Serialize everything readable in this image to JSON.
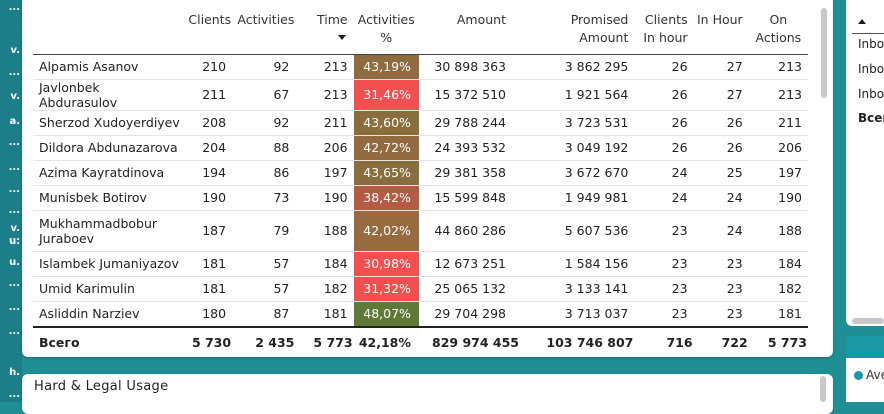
{
  "left_strip": [
    "...",
    "v.",
    "...",
    "v.",
    "a.",
    "...",
    "...",
    "...",
    "...",
    "v.",
    "...",
    "u.",
    "u.",
    "...",
    "...",
    "...",
    "h.",
    "..."
  ],
  "table": {
    "headers": {
      "name": "",
      "clients": "Clients",
      "activities": "Activities",
      "time": "Time",
      "activities_pct_1": "Activities",
      "activities_pct_2": "%",
      "amount": "Amount",
      "promised_1": "Promised",
      "promised_2": "Amount",
      "clients_in_hour_1": "Clients",
      "clients_in_hour_2": "In hour",
      "in_hour": "In Hour",
      "on_actions_1": "On",
      "on_actions_2": "Actions"
    },
    "rows": [
      {
        "name": "Alpamis Asanov",
        "clients": "210",
        "activities": "92",
        "time": "213",
        "pct": "43,19%",
        "pct_color": "#8f6b3f",
        "amount": "30 898 363",
        "promised": "3 862 295",
        "cih": "26",
        "ih": "27",
        "oa": "213"
      },
      {
        "name": "Javlonbek Abdurasulov",
        "clients": "211",
        "activities": "67",
        "time": "213",
        "pct": "31,46%",
        "pct_color": "#f25050",
        "amount": "15 372 510",
        "promised": "1 921 564",
        "cih": "26",
        "ih": "27",
        "oa": "213"
      },
      {
        "name": "Sherzod Xudoyerdiyev",
        "clients": "208",
        "activities": "92",
        "time": "211",
        "pct": "43,60%",
        "pct_color": "#8a6d3c",
        "amount": "29 788 244",
        "promised": "3 723 531",
        "cih": "26",
        "ih": "26",
        "oa": "211"
      },
      {
        "name": "Dildora Abdunazarova",
        "clients": "204",
        "activities": "88",
        "time": "206",
        "pct": "42,72%",
        "pct_color": "#936a3f",
        "amount": "24 393 532",
        "promised": "3 049 192",
        "cih": "26",
        "ih": "26",
        "oa": "206"
      },
      {
        "name": "Azima Kayratdinova",
        "clients": "194",
        "activities": "86",
        "time": "197",
        "pct": "43,65%",
        "pct_color": "#8a6d3c",
        "amount": "29 381 358",
        "promised": "3 672 670",
        "cih": "24",
        "ih": "25",
        "oa": "197"
      },
      {
        "name": "Munisbek Botirov",
        "clients": "190",
        "activities": "73",
        "time": "190",
        "pct": "38,42%",
        "pct_color": "#b55a43",
        "amount": "15 599 848",
        "promised": "1 949 981",
        "cih": "24",
        "ih": "24",
        "oa": "190"
      },
      {
        "name": "Mukhammadbobur Juraboev",
        "clients": "187",
        "activities": "79",
        "time": "188",
        "pct": "42,02%",
        "pct_color": "#986a3f",
        "amount": "44 860 286",
        "promised": "5 607 536",
        "cih": "23",
        "ih": "24",
        "oa": "188"
      },
      {
        "name": "Islambek Jumaniyazov",
        "clients": "181",
        "activities": "57",
        "time": "184",
        "pct": "30,98%",
        "pct_color": "#f44e4e",
        "amount": "12 673 251",
        "promised": "1 584 156",
        "cih": "23",
        "ih": "23",
        "oa": "184"
      },
      {
        "name": "Umid Karimulin",
        "clients": "181",
        "activities": "57",
        "time": "182",
        "pct": "31,32%",
        "pct_color": "#f24f4f",
        "amount": "25 065 132",
        "promised": "3 133 141",
        "cih": "23",
        "ih": "23",
        "oa": "182"
      },
      {
        "name": "Asliddin Narziev",
        "clients": "180",
        "activities": "87",
        "time": "181",
        "pct": "48,07%",
        "pct_color": "#5f7a36",
        "amount": "29 704 298",
        "promised": "3 713 037",
        "cih": "23",
        "ih": "23",
        "oa": "181"
      }
    ],
    "total": {
      "name": "Всего",
      "clients": "5 730",
      "activities": "2 435",
      "time": "5 773",
      "pct": "42,18%",
      "amount": "829 974 455",
      "promised": "103 746 807",
      "cih": "716",
      "ih": "722",
      "oa": "5 773"
    }
  },
  "right_panel": {
    "items": [
      "Inbo",
      "Inbo",
      "Inbo"
    ],
    "total": "Всег"
  },
  "legend": {
    "label": "Ave"
  },
  "bottom_card": {
    "title": "Hard & Legal Usage"
  }
}
